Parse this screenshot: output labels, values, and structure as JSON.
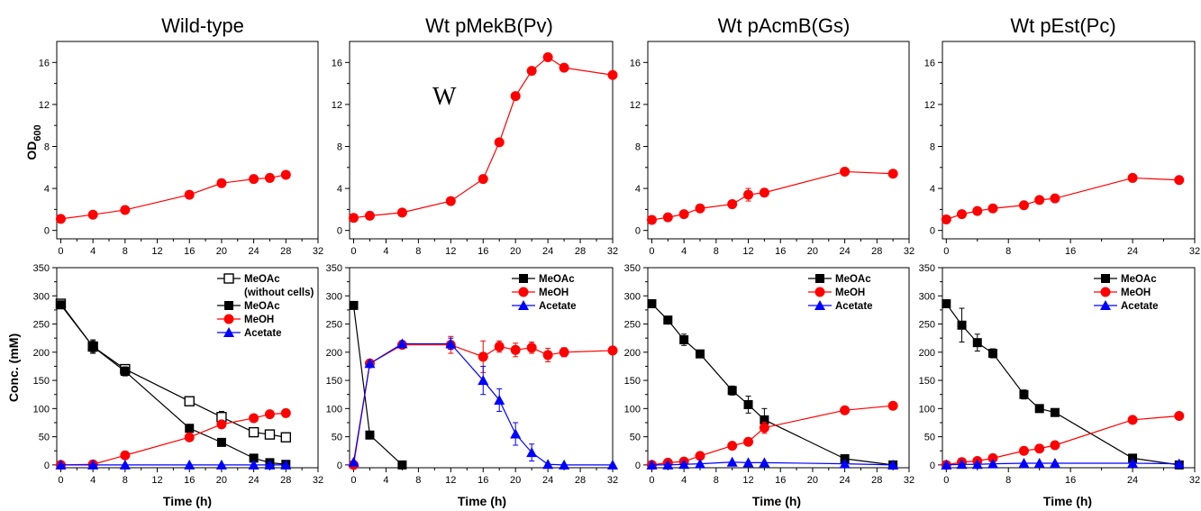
{
  "titles": [
    "Wild-type",
    "Wt pMekB(Pv)",
    "Wt pAcmB(Gs)",
    "Wt pEst(Pc)"
  ],
  "annotation": "W",
  "ylabel_top_main": "OD",
  "ylabel_top_sub": "600",
  "ylabel_bottom": "Conc. (mM)",
  "xlabel": "Time (h)",
  "colors": {
    "meoac": "#000000",
    "meoh": "#ff0000",
    "acetate": "#0000ff",
    "line": "#000000"
  },
  "chart_data": [
    {
      "type": "line",
      "title": "Wild-type",
      "ylabel": "OD600",
      "xlabel": "",
      "xlim": [
        -0.5,
        32
      ],
      "ylim": [
        -0.8,
        18
      ],
      "xticks": [
        0,
        4,
        8,
        12,
        16,
        20,
        24,
        28,
        32
      ],
      "yticks": [
        0,
        4,
        8,
        12,
        16
      ],
      "series": [
        {
          "values": [
            [
              0,
              1.1
            ],
            [
              4,
              1.5
            ],
            [
              8,
              1.95
            ],
            [
              16,
              3.4
            ],
            [
              20,
              4.5
            ],
            [
              24,
              4.9
            ],
            [
              26,
              5.0
            ],
            [
              28,
              5.3
            ]
          ]
        }
      ]
    },
    {
      "type": "line",
      "title": "Wt pMekB(Pv)",
      "ylabel": "",
      "xlabel": "",
      "xlim": [
        -0.5,
        32
      ],
      "ylim": [
        -0.8,
        18
      ],
      "xticks": [
        0,
        4,
        8,
        12,
        16,
        20,
        24,
        28,
        32
      ],
      "yticks": [
        0,
        4,
        8,
        12,
        16
      ],
      "series": [
        {
          "values": [
            [
              0,
              1.2
            ],
            [
              2,
              1.4
            ],
            [
              6,
              1.7
            ],
            [
              12,
              2.8
            ],
            [
              16,
              4.9
            ],
            [
              18,
              8.4
            ],
            [
              20,
              12.8
            ],
            [
              22,
              15.2
            ],
            [
              24,
              16.5
            ],
            [
              26,
              15.5
            ],
            [
              32,
              14.8
            ]
          ]
        }
      ]
    },
    {
      "type": "line",
      "title": "Wt pAcmB(Gs)",
      "ylabel": "",
      "xlabel": "",
      "xlim": [
        -0.5,
        32
      ],
      "ylim": [
        -0.8,
        18
      ],
      "xticks": [
        0,
        4,
        8,
        12,
        16,
        20,
        24,
        28,
        32
      ],
      "yticks": [
        0,
        4,
        8,
        12,
        16
      ],
      "series": [
        {
          "values": [
            [
              0,
              1.0
            ],
            [
              2,
              1.25
            ],
            [
              4,
              1.55
            ],
            [
              6,
              2.1
            ],
            [
              10,
              2.5
            ],
            [
              12,
              3.4
            ],
            [
              14,
              3.6
            ],
            [
              24,
              5.6
            ],
            [
              30,
              5.4
            ]
          ],
          "errors": [
            0,
            0,
            0,
            0,
            0,
            0.6,
            0,
            0,
            0
          ]
        }
      ]
    },
    {
      "type": "line",
      "title": "Wt pEst(Pc)",
      "ylabel": "",
      "xlabel": "",
      "xlim": [
        -0.5,
        32
      ],
      "ylim": [
        -0.8,
        18
      ],
      "xticks": [
        0,
        8,
        16,
        24,
        32
      ],
      "yticks": [
        0,
        4,
        8,
        12,
        16
      ],
      "series": [
        {
          "values": [
            [
              0,
              1.05
            ],
            [
              2,
              1.55
            ],
            [
              4,
              1.85
            ],
            [
              6,
              2.1
            ],
            [
              10,
              2.4
            ],
            [
              12,
              2.9
            ],
            [
              14,
              3.05
            ],
            [
              24,
              5.0
            ],
            [
              30,
              4.8
            ]
          ]
        }
      ]
    },
    {
      "type": "line",
      "title": "",
      "ylabel": "Conc. (mM)",
      "xlabel": "Time (h)",
      "xlim": [
        -0.5,
        32
      ],
      "ylim": [
        -5,
        350
      ],
      "xticks": [
        0,
        4,
        8,
        12,
        16,
        20,
        24,
        28,
        32
      ],
      "yticks": [
        0,
        50,
        100,
        150,
        200,
        250,
        300,
        350
      ],
      "legend": "top-right",
      "series": [
        {
          "name": "MeOAc\n(without cells)",
          "marker": "open-square",
          "values": [
            [
              0,
              286
            ],
            [
              4,
              210
            ],
            [
              8,
              170
            ],
            [
              16,
              113
            ],
            [
              20,
              85
            ],
            [
              24,
              58
            ],
            [
              26,
              54
            ],
            [
              28,
              49
            ]
          ],
          "errors": [
            0,
            10,
            6,
            0,
            10,
            8,
            8,
            0
          ]
        },
        {
          "name": "MeOAc",
          "marker": "square",
          "values": [
            [
              0,
              284
            ],
            [
              4,
              210
            ],
            [
              8,
              166
            ],
            [
              16,
              65
            ],
            [
              20,
              40
            ],
            [
              24,
              12
            ],
            [
              26,
              4
            ],
            [
              28,
              1
            ]
          ],
          "errors": [
            0,
            12,
            8,
            0,
            0,
            0,
            0,
            0
          ]
        },
        {
          "name": "MeOH",
          "marker": "circle",
          "values": [
            [
              0,
              0
            ],
            [
              4,
              1
            ],
            [
              8,
              17
            ],
            [
              16,
              49
            ],
            [
              20,
              72
            ],
            [
              24,
              83
            ],
            [
              26,
              90
            ],
            [
              28,
              92
            ]
          ]
        },
        {
          "name": "Acetate",
          "marker": "triangle",
          "values": [
            [
              0,
              0
            ],
            [
              4,
              0
            ],
            [
              8,
              0
            ],
            [
              16,
              0
            ],
            [
              20,
              0
            ],
            [
              24,
              0
            ],
            [
              26,
              0
            ],
            [
              28,
              0
            ]
          ]
        }
      ]
    },
    {
      "type": "line",
      "title": "",
      "ylabel": "",
      "xlabel": "Time (h)",
      "xlim": [
        -0.5,
        32
      ],
      "ylim": [
        -5,
        350
      ],
      "xticks": [
        0,
        4,
        8,
        12,
        16,
        20,
        24,
        28,
        32
      ],
      "yticks": [
        0,
        50,
        100,
        150,
        200,
        250,
        300,
        350
      ],
      "legend": "top-right",
      "series": [
        {
          "name": "MeOAc",
          "marker": "square",
          "values": [
            [
              0,
              283
            ],
            [
              2,
              53
            ],
            [
              6,
              0
            ]
          ]
        },
        {
          "name": "MeOH",
          "marker": "circle",
          "values": [
            [
              0,
              0
            ],
            [
              2,
              180
            ],
            [
              6,
              213
            ],
            [
              12,
              213
            ],
            [
              16,
              192
            ],
            [
              18,
              210
            ],
            [
              20,
              204
            ],
            [
              22,
              208
            ],
            [
              24,
              195
            ],
            [
              26,
              200
            ],
            [
              32,
              203
            ]
          ],
          "errors": [
            0,
            0,
            5,
            15,
            28,
            10,
            12,
            10,
            12,
            8,
            0
          ]
        },
        {
          "name": "Acetate",
          "marker": "triangle",
          "values": [
            [
              0,
              5
            ],
            [
              2,
              180
            ],
            [
              6,
              215
            ],
            [
              12,
              215
            ],
            [
              16,
              150
            ],
            [
              18,
              115
            ],
            [
              20,
              55
            ],
            [
              22,
              22
            ],
            [
              24,
              1
            ],
            [
              26,
              0
            ],
            [
              32,
              0
            ]
          ],
          "errors": [
            0,
            0,
            5,
            10,
            25,
            20,
            20,
            15,
            0,
            0,
            0
          ]
        }
      ]
    },
    {
      "type": "line",
      "title": "",
      "ylabel": "",
      "xlabel": "Time (h)",
      "xlim": [
        -0.5,
        32
      ],
      "ylim": [
        -5,
        350
      ],
      "xticks": [
        0,
        4,
        8,
        12,
        16,
        20,
        24,
        28,
        32
      ],
      "yticks": [
        0,
        50,
        100,
        150,
        200,
        250,
        300,
        350
      ],
      "legend": "top-right",
      "series": [
        {
          "name": "MeOAc",
          "marker": "square",
          "values": [
            [
              0,
              286
            ],
            [
              2,
              257
            ],
            [
              4,
              222
            ],
            [
              6,
              197
            ],
            [
              10,
              132
            ],
            [
              12,
              107
            ],
            [
              14,
              80
            ],
            [
              24,
              11
            ],
            [
              30,
              0
            ]
          ],
          "errors": [
            0,
            4,
            10,
            4,
            8,
            15,
            20,
            5,
            0
          ]
        },
        {
          "name": "MeOH",
          "marker": "circle",
          "values": [
            [
              0,
              0
            ],
            [
              2,
              4
            ],
            [
              4,
              6
            ],
            [
              6,
              16
            ],
            [
              10,
              34
            ],
            [
              12,
              41
            ],
            [
              14,
              66
            ],
            [
              24,
              97
            ],
            [
              30,
              105
            ]
          ],
          "errors": [
            0,
            0,
            0,
            0,
            0,
            0,
            10,
            0,
            0
          ]
        },
        {
          "name": "Acetate",
          "marker": "triangle",
          "values": [
            [
              0,
              0
            ],
            [
              2,
              0
            ],
            [
              4,
              1
            ],
            [
              6,
              2
            ],
            [
              10,
              5
            ],
            [
              12,
              4
            ],
            [
              14,
              4
            ],
            [
              24,
              2
            ],
            [
              30,
              0
            ]
          ]
        }
      ]
    },
    {
      "type": "line",
      "title": "",
      "ylabel": "",
      "xlabel": "Time (h)",
      "xlim": [
        -0.5,
        32
      ],
      "ylim": [
        -5,
        350
      ],
      "xticks": [
        0,
        8,
        16,
        24,
        32
      ],
      "yticks": [
        0,
        50,
        100,
        150,
        200,
        250,
        300,
        350
      ],
      "legend": "top-right",
      "series": [
        {
          "name": "MeOAc",
          "marker": "square",
          "values": [
            [
              0,
              286
            ],
            [
              2,
              248
            ],
            [
              4,
              217
            ],
            [
              6,
              198
            ],
            [
              10,
              125
            ],
            [
              12,
              100
            ],
            [
              14,
              93
            ],
            [
              24,
              12
            ],
            [
              30,
              0
            ]
          ],
          "errors": [
            0,
            30,
            15,
            8,
            8,
            0,
            0,
            0,
            0
          ]
        },
        {
          "name": "MeOH",
          "marker": "circle",
          "values": [
            [
              0,
              0
            ],
            [
              2,
              5
            ],
            [
              4,
              7
            ],
            [
              6,
              12
            ],
            [
              10,
              25
            ],
            [
              12,
              29
            ],
            [
              14,
              35
            ],
            [
              24,
              80
            ],
            [
              30,
              87
            ]
          ]
        },
        {
          "name": "Acetate",
          "marker": "triangle",
          "values": [
            [
              0,
              0
            ],
            [
              2,
              1
            ],
            [
              4,
              1
            ],
            [
              6,
              2
            ],
            [
              10,
              3
            ],
            [
              12,
              3
            ],
            [
              14,
              3
            ],
            [
              24,
              3
            ],
            [
              30,
              2
            ]
          ]
        }
      ]
    }
  ]
}
